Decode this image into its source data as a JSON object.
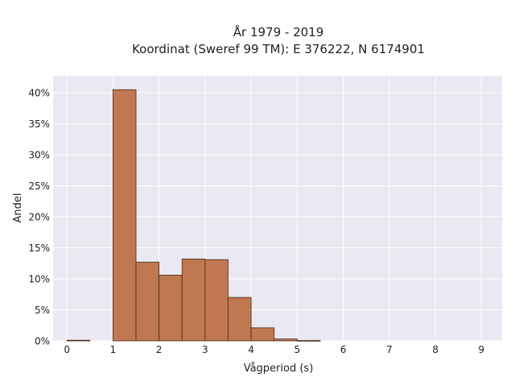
{
  "chart_data": {
    "type": "bar",
    "title": "År 1979 - 2019",
    "subtitle": "Koordinat (Sweref 99 TM): E 376222, N 6174901",
    "xlabel": "Vågperiod (s)",
    "ylabel": "Andel",
    "xlim": [
      -0.3,
      9.45
    ],
    "ylim": [
      0,
      0.4275
    ],
    "xticks": [
      0,
      1,
      2,
      3,
      4,
      5,
      6,
      7,
      8,
      9
    ],
    "xtick_labels": [
      "0",
      "1",
      "2",
      "3",
      "4",
      "5",
      "6",
      "7",
      "8",
      "9"
    ],
    "yticks": [
      0,
      0.05,
      0.1,
      0.15,
      0.2,
      0.25,
      0.3,
      0.35,
      0.4
    ],
    "ytick_labels": [
      "0%",
      "5%",
      "10%",
      "15%",
      "20%",
      "25%",
      "30%",
      "35%",
      "40%"
    ],
    "bin_width": 0.5,
    "bins": [
      0,
      0.5,
      1.0,
      1.5,
      2.0,
      2.5,
      3.0,
      3.5,
      4.0,
      4.5,
      5.0
    ],
    "values": [
      0.001,
      0,
      0.405,
      0.127,
      0.106,
      0.132,
      0.131,
      0.07,
      0.021,
      0.003,
      0.0005
    ],
    "grid": true,
    "colors": {
      "bar_fill": "#c07850",
      "bar_edge": "#4a2a18",
      "plot_bg": "#e9e9f1",
      "grid": "#ffffff"
    }
  }
}
